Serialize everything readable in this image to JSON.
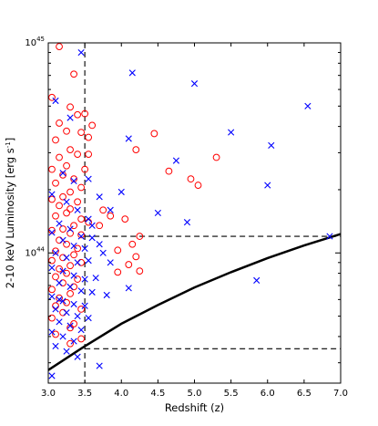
{
  "chart_data": {
    "type": "scatter",
    "xlabel": "Redshift (z)",
    "ylabel_main": "2-10 keV Luminosity [erg s",
    "ylabel_sup": "-1",
    "ylabel_end": "]",
    "xlim": [
      3.0,
      7.0
    ],
    "ylim": [
      2.4e+43,
      1e+45
    ],
    "y_scale": "log",
    "x_ticks": [
      3.0,
      3.5,
      4.0,
      4.5,
      5.0,
      5.5,
      6.0,
      6.5,
      7.0
    ],
    "x_tick_labels": [
      "3.0",
      "3.5",
      "4.0",
      "4.5",
      "5.0",
      "5.5",
      "6.0",
      "6.5",
      "7.0"
    ],
    "y_major_ticks": [
      {
        "value": 1e+44,
        "base": "10",
        "exp": "44"
      },
      {
        "value": 1e+45,
        "base": "10",
        "exp": "45"
      }
    ],
    "y_minor_ticks": [
      3e+43,
      4e+43,
      5e+43,
      6e+43,
      7e+43,
      8e+43,
      9e+43,
      2e+44,
      3e+44,
      4e+44,
      5e+44,
      6e+44,
      7e+44,
      8e+44,
      9e+44
    ],
    "grid": false,
    "reference_lines": {
      "vertical_dashed_x": 3.5,
      "horizontal_dashed_upper_y": 1.2e+44,
      "horizontal_dashed_lower_y": 3.5e+43
    },
    "curve": {
      "description": "solid black line",
      "x": [
        3.0,
        3.5,
        4.0,
        4.5,
        5.0,
        5.5,
        6.0,
        6.5,
        7.0
      ],
      "y": [
        2.77e+43,
        3.6e+43,
        4.6e+43,
        5.65e+43,
        6.85e+43,
        8.1e+43,
        9.45e+43,
        1.085e+44,
        1.23e+44
      ]
    },
    "series": [
      {
        "marker": "circle",
        "color": "#ff0000",
        "points": [
          [
            3.15,
            9.6e+44
          ],
          [
            3.35,
            7.1e+44
          ],
          [
            3.05,
            5.5e+44
          ],
          [
            3.3,
            4.95e+44
          ],
          [
            3.4,
            4.55e+44
          ],
          [
            3.5,
            4.6e+44
          ],
          [
            3.15,
            4.15e+44
          ],
          [
            3.25,
            3.8e+44
          ],
          [
            3.45,
            3.75e+44
          ],
          [
            3.55,
            3.55e+44
          ],
          [
            3.6,
            4.05e+44
          ],
          [
            3.1,
            3.45e+44
          ],
          [
            3.3,
            3.1e+44
          ],
          [
            3.4,
            2.95e+44
          ],
          [
            3.15,
            2.85e+44
          ],
          [
            3.55,
            2.95e+44
          ],
          [
            3.25,
            2.6e+44
          ],
          [
            3.05,
            2.5e+44
          ],
          [
            3.5,
            2.5e+44
          ],
          [
            3.2,
            2.35e+44
          ],
          [
            3.35,
            2.25e+44
          ],
          [
            3.1,
            2.15e+44
          ],
          [
            3.45,
            2.05e+44
          ],
          [
            3.3,
            1.95e+44
          ],
          [
            3.2,
            1.85e+44
          ],
          [
            3.05,
            1.8e+44
          ],
          [
            3.4,
            1.75e+44
          ],
          [
            3.15,
            1.68e+44
          ],
          [
            3.3,
            1.62e+44
          ],
          [
            3.25,
            1.55e+44
          ],
          [
            3.1,
            1.5e+44
          ],
          [
            3.45,
            1.45e+44
          ],
          [
            3.55,
            1.4e+44
          ],
          [
            3.35,
            1.35e+44
          ],
          [
            3.2,
            1.3e+44
          ],
          [
            3.05,
            1.28e+44
          ],
          [
            3.3,
            1.24e+44
          ],
          [
            3.45,
            1.22e+44
          ],
          [
            3.15,
            1.15e+44
          ],
          [
            3.25,
            1.1e+44
          ],
          [
            3.4,
            1.05e+44
          ],
          [
            3.1,
            1.02e+44
          ],
          [
            3.35,
            9.8e+43
          ],
          [
            3.2,
            9.5e+43
          ],
          [
            3.05,
            9.2e+43
          ],
          [
            3.45,
            9e+43
          ],
          [
            3.3,
            8.7e+43
          ],
          [
            3.15,
            8.4e+43
          ],
          [
            3.25,
            8e+43
          ],
          [
            3.1,
            7.7e+43
          ],
          [
            3.4,
            7.5e+43
          ],
          [
            3.2,
            7.2e+43
          ],
          [
            3.35,
            6.9e+43
          ],
          [
            3.05,
            6.7e+43
          ],
          [
            3.3,
            6.4e+43
          ],
          [
            3.15,
            6.1e+43
          ],
          [
            3.25,
            5.8e+43
          ],
          [
            3.1,
            5.6e+43
          ],
          [
            3.45,
            5.4e+43
          ],
          [
            3.2,
            5.2e+43
          ],
          [
            3.05,
            4.9e+43
          ],
          [
            3.35,
            4.6e+43
          ],
          [
            3.3,
            4.4e+43
          ],
          [
            3.1,
            4.1e+43
          ],
          [
            3.45,
            3.9e+43
          ],
          [
            3.3,
            3.7e+43
          ],
          [
            4.45,
            3.7e+44
          ],
          [
            4.2,
            3.1e+44
          ],
          [
            4.65,
            2.45e+44
          ],
          [
            4.95,
            2.25e+44
          ],
          [
            5.3,
            2.85e+44
          ],
          [
            5.05,
            2.1e+44
          ],
          [
            3.75,
            1.6e+44
          ],
          [
            3.85,
            1.5e+44
          ],
          [
            4.05,
            1.45e+44
          ],
          [
            3.7,
            1.35e+44
          ],
          [
            4.25,
            1.2e+44
          ],
          [
            4.15,
            1.1e+44
          ],
          [
            3.95,
            1.03e+44
          ],
          [
            4.2,
            9.6e+43
          ],
          [
            4.1,
            8.8e+43
          ],
          [
            3.95,
            8.1e+43
          ],
          [
            4.25,
            8.2e+43
          ]
        ]
      },
      {
        "marker": "x",
        "color": "#0000ff",
        "points": [
          [
            3.45,
            9e+44
          ],
          [
            4.15,
            7.2e+44
          ],
          [
            5.0,
            6.4e+44
          ],
          [
            6.55,
            5e+44
          ],
          [
            3.1,
            5.3e+44
          ],
          [
            3.3,
            4.4e+44
          ],
          [
            4.1,
            3.5e+44
          ],
          [
            5.5,
            3.75e+44
          ],
          [
            6.05,
            3.25e+44
          ],
          [
            4.75,
            2.75e+44
          ],
          [
            6.0,
            2.1e+44
          ],
          [
            3.2,
            2.4e+44
          ],
          [
            3.35,
            2.2e+44
          ],
          [
            3.55,
            2.25e+44
          ],
          [
            4.0,
            1.95e+44
          ],
          [
            3.7,
            1.85e+44
          ],
          [
            3.85,
            1.6e+44
          ],
          [
            4.5,
            1.55e+44
          ],
          [
            4.9,
            1.4e+44
          ],
          [
            3.05,
            1.9e+44
          ],
          [
            3.25,
            1.75e+44
          ],
          [
            3.4,
            1.6e+44
          ],
          [
            3.55,
            1.45e+44
          ],
          [
            3.6,
            1.35e+44
          ],
          [
            3.15,
            1.38e+44
          ],
          [
            3.3,
            1.3e+44
          ],
          [
            3.45,
            1.2e+44
          ],
          [
            3.6,
            1.18e+44
          ],
          [
            3.05,
            1.25e+44
          ],
          [
            3.2,
            1.15e+44
          ],
          [
            3.35,
            1.08e+44
          ],
          [
            3.5,
            1.05e+44
          ],
          [
            3.7,
            1.1e+44
          ],
          [
            3.75,
            1e+44
          ],
          [
            3.1,
            1e+44
          ],
          [
            3.25,
            9.5e+43
          ],
          [
            3.4,
            9e+43
          ],
          [
            3.55,
            9.2e+43
          ],
          [
            3.85,
            9e+43
          ],
          [
            3.05,
            8.5e+43
          ],
          [
            3.2,
            8.2e+43
          ],
          [
            3.35,
            7.8e+43
          ],
          [
            3.5,
            7.5e+43
          ],
          [
            3.65,
            7.6e+43
          ],
          [
            3.15,
            7.2e+43
          ],
          [
            3.3,
            6.9e+43
          ],
          [
            3.45,
            6.6e+43
          ],
          [
            3.6,
            6.5e+43
          ],
          [
            3.8,
            6.3e+43
          ],
          [
            3.05,
            6.2e+43
          ],
          [
            3.2,
            5.9e+43
          ],
          [
            3.35,
            5.7e+43
          ],
          [
            3.5,
            5.6e+43
          ],
          [
            3.1,
            5.4e+43
          ],
          [
            3.25,
            5.2e+43
          ],
          [
            3.4,
            5e+43
          ],
          [
            3.55,
            4.9e+43
          ],
          [
            3.15,
            4.7e+43
          ],
          [
            3.3,
            4.5e+43
          ],
          [
            3.45,
            4.3e+43
          ],
          [
            3.05,
            4.2e+43
          ],
          [
            3.2,
            4e+43
          ],
          [
            3.35,
            3.8e+43
          ],
          [
            3.1,
            3.6e+43
          ],
          [
            3.25,
            3.4e+43
          ],
          [
            3.4,
            3.2e+43
          ],
          [
            3.7,
            2.9e+43
          ],
          [
            3.05,
            2.6e+43
          ],
          [
            5.85,
            7.4e+43
          ],
          [
            6.85,
            1.2e+44
          ],
          [
            4.1,
            6.8e+43
          ],
          [
            3.15,
            6e+43
          ]
        ]
      }
    ]
  }
}
